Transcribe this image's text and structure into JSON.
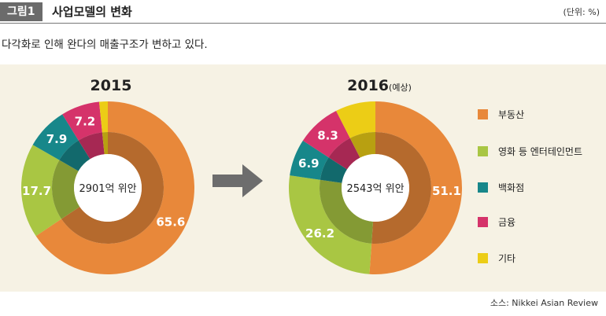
{
  "header": {
    "figure_badge": "그림1",
    "title": "사업모델의 변화",
    "unit": "(단위: %)"
  },
  "subtitle": "다각화로 인해 완다의 매출구조가 변하고 있다.",
  "source": "소스: Nikkei Asian Review",
  "colors": {
    "real_estate": "#e8883a",
    "entertainment": "#a9c643",
    "department_store": "#17878a",
    "finance": "#d5336a",
    "other": "#eccd16",
    "panel": "#f6f2e4",
    "arrow": "#6d6d6d"
  },
  "chart_data": [
    {
      "type": "pie",
      "title": "2015",
      "title_suffix": "",
      "center_label": "2901억 위안",
      "slices": [
        {
          "name": "부동산",
          "value": 65.6,
          "label": "65.6"
        },
        {
          "name": "영화 등 엔터테인먼트",
          "value": 17.7,
          "label": "17.7"
        },
        {
          "name": "백화점",
          "value": 7.9,
          "label": "7.9"
        },
        {
          "name": "금융",
          "value": 7.2,
          "label": "7.2"
        },
        {
          "name": "기타",
          "value": 1.6,
          "label": ""
        }
      ]
    },
    {
      "type": "pie",
      "title": "2016",
      "title_suffix": "(예상)",
      "center_label": "2543억 위안",
      "slices": [
        {
          "name": "부동산",
          "value": 51.1,
          "label": "51.1"
        },
        {
          "name": "영화 등 엔터테인먼트",
          "value": 26.2,
          "label": "26.2"
        },
        {
          "name": "백화점",
          "value": 6.9,
          "label": "6.9"
        },
        {
          "name": "금융",
          "value": 8.3,
          "label": "8.3"
        },
        {
          "name": "기타",
          "value": 7.5,
          "label": ""
        }
      ]
    }
  ],
  "legend": [
    {
      "label": "부동산",
      "color": "#e8883a"
    },
    {
      "label": "영화 등 엔터테인먼트",
      "color": "#a9c643"
    },
    {
      "label": "백화점",
      "color": "#17878a"
    },
    {
      "label": "금융",
      "color": "#d5336a"
    },
    {
      "label": "기타",
      "color": "#eccd16"
    }
  ]
}
